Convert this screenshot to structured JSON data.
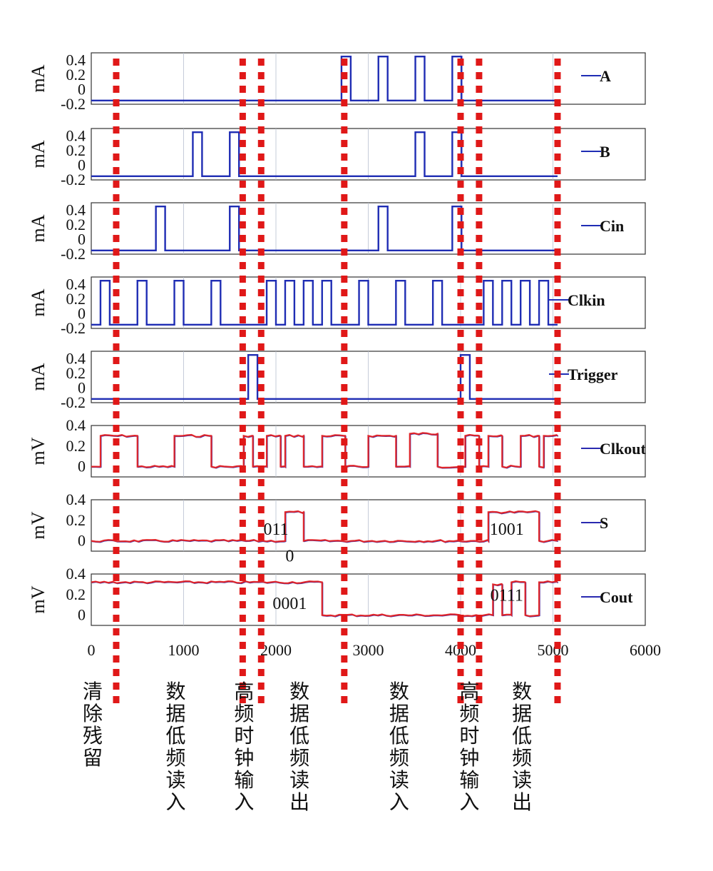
{
  "chart_data": {
    "type": "line",
    "xlim": [
      0,
      6000
    ],
    "x_ticks": [
      0,
      1000,
      2000,
      3000,
      4000,
      5000,
      6000
    ],
    "x_tick_labels": [
      "0",
      "1000",
      "2000",
      "3000",
      "4000",
      "5000",
      "6000"
    ],
    "grid": "vertical",
    "legend_position": "right",
    "colors": {
      "input": "#1f2db4",
      "output_red": "#e0252a",
      "output_blue": "#2a2ab0",
      "divider": "#e01818",
      "frame": "#333333",
      "grid": "#b8c0d0"
    },
    "panels": [
      {
        "name": "A",
        "ylabel": "mA",
        "ylim": [
          -0.2,
          0.5
        ],
        "yticks": [
          "-0.2",
          "0",
          "0.2",
          "0.4"
        ],
        "low": -0.15,
        "high": 0.45,
        "steps": [
          [
            0,
            -0.15
          ],
          [
            2710,
            0.45
          ],
          [
            2810,
            -0.15
          ],
          [
            3110,
            0.45
          ],
          [
            3210,
            -0.15
          ],
          [
            3510,
            0.45
          ],
          [
            3610,
            -0.15
          ],
          [
            3910,
            0.45
          ],
          [
            4010,
            -0.15
          ],
          [
            5050,
            -0.15
          ]
        ]
      },
      {
        "name": "B",
        "ylabel": "mA",
        "ylim": [
          -0.2,
          0.5
        ],
        "yticks": [
          "-0.2",
          "0",
          "0.2",
          "0.4"
        ],
        "steps": [
          [
            0,
            -0.15
          ],
          [
            1100,
            0.45
          ],
          [
            1200,
            -0.15
          ],
          [
            1500,
            0.45
          ],
          [
            1600,
            -0.15
          ],
          [
            3510,
            0.45
          ],
          [
            3610,
            -0.15
          ],
          [
            3910,
            0.45
          ],
          [
            4010,
            -0.15
          ],
          [
            5050,
            -0.15
          ]
        ]
      },
      {
        "name": "Cin",
        "ylabel": "mA",
        "ylim": [
          -0.2,
          0.5
        ],
        "yticks": [
          "-0.2",
          "0",
          "0.2",
          "0.4"
        ],
        "steps": [
          [
            0,
            -0.15
          ],
          [
            700,
            0.45
          ],
          [
            800,
            -0.15
          ],
          [
            1500,
            0.45
          ],
          [
            1600,
            -0.15
          ],
          [
            3110,
            0.45
          ],
          [
            3210,
            -0.15
          ],
          [
            3910,
            0.45
          ],
          [
            4010,
            -0.15
          ],
          [
            5050,
            -0.15
          ]
        ]
      },
      {
        "name": "Clkin",
        "ylabel": "mA",
        "ylim": [
          -0.2,
          0.5
        ],
        "yticks": [
          "-0.2",
          "0",
          "0.2",
          "0.4"
        ],
        "steps": [
          [
            0,
            -0.15
          ],
          [
            100,
            0.45
          ],
          [
            200,
            -0.15
          ],
          [
            500,
            0.45
          ],
          [
            600,
            -0.15
          ],
          [
            900,
            0.45
          ],
          [
            1000,
            -0.15
          ],
          [
            1300,
            0.45
          ],
          [
            1400,
            -0.15
          ],
          [
            1900,
            0.45
          ],
          [
            2000,
            -0.15
          ],
          [
            2100,
            0.45
          ],
          [
            2200,
            -0.15
          ],
          [
            2300,
            0.45
          ],
          [
            2400,
            -0.15
          ],
          [
            2500,
            0.45
          ],
          [
            2600,
            -0.15
          ],
          [
            2900,
            0.45
          ],
          [
            3000,
            -0.15
          ],
          [
            3300,
            0.45
          ],
          [
            3400,
            -0.15
          ],
          [
            3700,
            0.45
          ],
          [
            3800,
            -0.15
          ],
          [
            4250,
            0.45
          ],
          [
            4350,
            -0.15
          ],
          [
            4450,
            0.45
          ],
          [
            4550,
            -0.15
          ],
          [
            4650,
            0.45
          ],
          [
            4750,
            -0.15
          ],
          [
            4850,
            0.45
          ],
          [
            4950,
            -0.15
          ],
          [
            5050,
            -0.15
          ]
        ]
      },
      {
        "name": "Trigger",
        "ylabel": "mA",
        "ylim": [
          -0.2,
          0.5
        ],
        "yticks": [
          "-0.2",
          "0",
          "0.2",
          "0.4"
        ],
        "steps": [
          [
            0,
            -0.15
          ],
          [
            1700,
            0.45
          ],
          [
            1800,
            -0.15
          ],
          [
            4000,
            0.45
          ],
          [
            4100,
            -0.15
          ],
          [
            5050,
            -0.15
          ]
        ]
      },
      {
        "name": "Clkout",
        "ylabel": "mV",
        "ylim": [
          -0.1,
          0.4
        ],
        "yticks": [
          "0",
          "0.2",
          "0.4"
        ],
        "steps": [
          [
            0,
            0.0
          ],
          [
            100,
            0.3
          ],
          [
            500,
            0.0
          ],
          [
            900,
            0.3
          ],
          [
            1300,
            0.0
          ],
          [
            1650,
            0.3
          ],
          [
            1750,
            0.0
          ],
          [
            1900,
            0.3
          ],
          [
            2050,
            0.0
          ],
          [
            2100,
            0.3
          ],
          [
            2300,
            0.0
          ],
          [
            2500,
            0.3
          ],
          [
            2750,
            0.0
          ],
          [
            3000,
            0.3
          ],
          [
            3300,
            0.0
          ],
          [
            3450,
            0.32
          ],
          [
            3750,
            0.0
          ],
          [
            4050,
            0.3
          ],
          [
            4200,
            0.0
          ],
          [
            4300,
            0.3
          ],
          [
            4450,
            0.0
          ],
          [
            4650,
            0.3
          ],
          [
            4850,
            0.0
          ],
          [
            4900,
            0.3
          ],
          [
            5050,
            0.3
          ]
        ]
      },
      {
        "name": "S",
        "ylabel": "mV",
        "ylim": [
          -0.1,
          0.4
        ],
        "yticks": [
          "0",
          "0.2",
          "0.4"
        ],
        "steps": [
          [
            0,
            0.0
          ],
          [
            2100,
            0.28
          ],
          [
            2300,
            0.0
          ],
          [
            4300,
            0.28
          ],
          [
            4850,
            0.0
          ],
          [
            5050,
            0.0
          ]
        ],
        "annotations": [
          {
            "text": "011",
            "x": 2000,
            "y": 0.06
          },
          {
            "text": "0",
            "x": 2150,
            "y": -0.2
          },
          {
            "text": "1001",
            "x": 4500,
            "y": 0.06
          }
        ]
      },
      {
        "name": "Cout",
        "ylabel": "mV",
        "ylim": [
          -0.1,
          0.4
        ],
        "yticks": [
          "0",
          "0.2",
          "0.4"
        ],
        "steps": [
          [
            0,
            0.32
          ],
          [
            2500,
            0.0
          ],
          [
            4350,
            0.3
          ],
          [
            4450,
            0.0
          ],
          [
            4550,
            0.32
          ],
          [
            4700,
            0.0
          ],
          [
            4850,
            0.32
          ],
          [
            5050,
            0.32
          ]
        ],
        "annotations": [
          {
            "text": "0001",
            "x": 2150,
            "y": 0.06
          },
          {
            "text": "0111",
            "x": 4500,
            "y": 0.14
          }
        ]
      }
    ],
    "phase_dividers_x": [
      270,
      1640,
      1840,
      2740,
      4000,
      4200,
      5050
    ],
    "phase_labels": [
      {
        "text": "清除残留",
        "x": 0
      },
      {
        "text": "数据低频读入",
        "x": 900
      },
      {
        "text": "高频时钟输入",
        "x": 1640
      },
      {
        "text": "数据低频读出",
        "x": 2240
      },
      {
        "text": "数据低频读入",
        "x": 3320
      },
      {
        "text": "高频时钟输入",
        "x": 4080
      },
      {
        "text": "数据低频读出",
        "x": 4650
      }
    ]
  }
}
